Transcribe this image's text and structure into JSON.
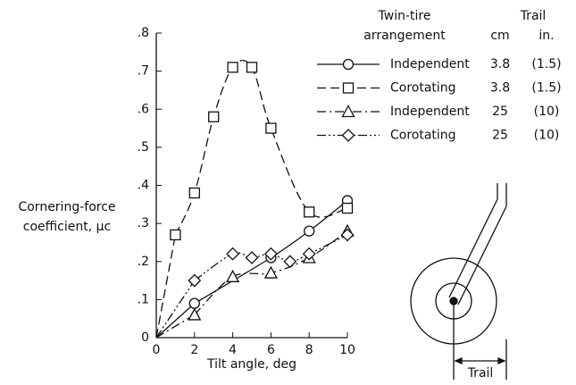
{
  "chart_data": {
    "type": "line",
    "xlabel": "Tilt angle, deg",
    "ylabel": [
      "Cornering-force",
      "coefficient, μc"
    ],
    "xlim": [
      0,
      10
    ],
    "xticks": [
      0,
      2,
      4,
      6,
      8,
      10
    ],
    "ylim": [
      0,
      0.8
    ],
    "yticks": [
      {
        "value": 0,
        "label": "0"
      },
      {
        "value": 0.1,
        "label": ".1"
      },
      {
        "value": 0.2,
        "label": ".2"
      },
      {
        "value": 0.3,
        "label": ".3"
      },
      {
        "value": 0.4,
        "label": ".4"
      },
      {
        "value": 0.5,
        "label": ".5"
      },
      {
        "value": 0.6,
        "label": ".6"
      },
      {
        "value": 0.7,
        "label": ".7"
      },
      {
        "value": 0.8,
        "label": ".8"
      }
    ],
    "legend_headers": {
      "arrangement": [
        "Twin-tire",
        "arrangement"
      ],
      "trail": "Trail",
      "cm": "cm",
      "in": "in."
    },
    "series": [
      {
        "name": "Independent",
        "trail_cm": "3.8",
        "trail_in": "(1.5)",
        "color": "#111",
        "dash": "solid",
        "marker": "circle",
        "x": [
          2,
          6,
          8,
          10
        ],
        "values": [
          0.09,
          0.21,
          0.28,
          0.36
        ]
      },
      {
        "name": "Corotating",
        "trail_cm": "3.8",
        "trail_in": "(1.5)",
        "color": "#111",
        "dash": "long-dash",
        "marker": "square",
        "x": [
          1,
          2,
          3,
          4,
          5,
          6,
          8,
          10
        ],
        "values": [
          0.27,
          0.38,
          0.58,
          0.71,
          0.71,
          0.55,
          0.33,
          0.34
        ]
      },
      {
        "name": "Independent",
        "trail_cm": "25",
        "trail_in": "(10)",
        "color": "#111",
        "dash": "dash-dot",
        "marker": "triangle",
        "x": [
          2,
          4,
          6,
          8,
          10
        ],
        "values": [
          0.06,
          0.16,
          0.17,
          0.21,
          0.28
        ]
      },
      {
        "name": "Corotating",
        "trail_cm": "25",
        "trail_in": "(10)",
        "color": "#111",
        "dash": "dash-dot-dot",
        "marker": "diamond",
        "x": [
          2,
          4,
          5,
          6,
          7,
          8,
          10
        ],
        "values": [
          0.15,
          0.22,
          0.21,
          0.22,
          0.2,
          0.22,
          0.27
        ]
      }
    ],
    "annotation": "Trail"
  }
}
